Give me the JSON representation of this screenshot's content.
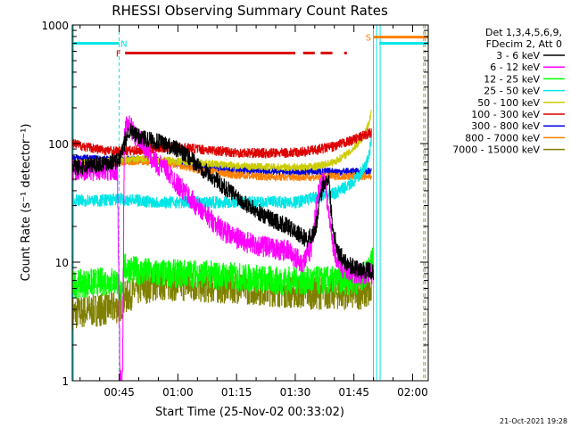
{
  "chart_data": {
    "type": "line",
    "title": "RHESSI Observing Summary Count Rates",
    "xlabel": "Start Time (25-Nov-02 00:33:02)",
    "ylabel": "Count Rate (s⁻¹ detector⁻¹)",
    "yscale": "log",
    "ylim": [
      1,
      1000
    ],
    "xlim_minutes": [
      33.0,
      124.0
    ],
    "x_ticks": [
      {
        "minute": 45,
        "label": "00:45"
      },
      {
        "minute": 60,
        "label": "01:00"
      },
      {
        "minute": 75,
        "label": "01:15"
      },
      {
        "minute": 90,
        "label": "01:30"
      },
      {
        "minute": 105,
        "label": "01:45"
      },
      {
        "minute": 120,
        "label": "02:00"
      }
    ],
    "y_ticks": [
      {
        "value": 1,
        "label": "1"
      },
      {
        "value": 10,
        "label": "10"
      },
      {
        "value": 100,
        "label": "100"
      },
      {
        "value": 1000,
        "label": "1000"
      }
    ],
    "legend_header": [
      "Det 1,3,4,5,6,9,",
      "FDecim 2, Att 0"
    ],
    "legend_position": "right",
    "series": [
      {
        "name": "3 - 6 keV",
        "color": "#000000",
        "noise": 0.07,
        "points": [
          [
            33,
            62
          ],
          [
            45,
            72
          ],
          [
            46.5,
            105
          ],
          [
            47.5,
            130
          ],
          [
            49,
            118
          ],
          [
            51,
            112
          ],
          [
            53,
            108
          ],
          [
            56,
            100
          ],
          [
            59,
            92
          ],
          [
            62,
            80
          ],
          [
            65,
            66
          ],
          [
            68,
            55
          ],
          [
            71,
            45
          ],
          [
            74,
            38
          ],
          [
            77,
            32
          ],
          [
            80,
            27
          ],
          [
            84,
            23
          ],
          [
            88,
            20
          ],
          [
            90,
            18
          ],
          [
            91,
            17
          ],
          [
            93,
            15.5
          ],
          [
            95,
            18
          ],
          [
            97,
            45
          ],
          [
            98.5,
            52
          ],
          [
            99.5,
            20
          ],
          [
            101,
            12
          ],
          [
            103,
            10
          ],
          [
            105,
            9
          ],
          [
            107,
            8.5
          ],
          [
            109,
            8.5
          ],
          [
            110,
            8
          ]
        ],
        "gaps": [
          [
            109.5,
            124
          ]
        ]
      },
      {
        "name": "6 - 12 keV",
        "color": "#ff00ff",
        "noise": 0.09,
        "points": [
          [
            33,
            60
          ],
          [
            44.5,
            60
          ],
          [
            45.2,
            1
          ],
          [
            45.8,
            1
          ],
          [
            46.3,
            135
          ],
          [
            47.5,
            150
          ],
          [
            49,
            115
          ],
          [
            51,
            100
          ],
          [
            54,
            70
          ],
          [
            57,
            60
          ],
          [
            60,
            45
          ],
          [
            63,
            35
          ],
          [
            66,
            27
          ],
          [
            69,
            22
          ],
          [
            72,
            18
          ],
          [
            75,
            16
          ],
          [
            78,
            14.5
          ],
          [
            80,
            14
          ],
          [
            84,
            13
          ],
          [
            88,
            12.5
          ],
          [
            90,
            11
          ],
          [
            92,
            10
          ],
          [
            94,
            13
          ],
          [
            96,
            40
          ],
          [
            97.5,
            55
          ],
          [
            98.5,
            25
          ],
          [
            100,
            12
          ],
          [
            102,
            9
          ],
          [
            105,
            8
          ],
          [
            110,
            8
          ]
        ],
        "gaps": [
          [
            109.5,
            124
          ]
        ]
      },
      {
        "name": "12 - 25 keV",
        "color": "#00ff00",
        "noise": 0.12,
        "points": [
          [
            33,
            6.5
          ],
          [
            44.5,
            7
          ],
          [
            45.2,
            5
          ],
          [
            46.3,
            9
          ],
          [
            49,
            8.5
          ],
          [
            55,
            8
          ],
          [
            65,
            8
          ],
          [
            75,
            7.5
          ],
          [
            85,
            7
          ],
          [
            90,
            7
          ],
          [
            95,
            7
          ],
          [
            100,
            7
          ],
          [
            106,
            7
          ],
          [
            108,
            8
          ],
          [
            109,
            10
          ],
          [
            110,
            10
          ]
        ],
        "gaps": [
          [
            109.5,
            124
          ]
        ]
      },
      {
        "name": "25 - 50 keV",
        "color": "#00e5e5",
        "noise": 0.05,
        "points": [
          [
            33,
            33
          ],
          [
            40,
            33
          ],
          [
            45,
            34
          ],
          [
            50,
            33
          ],
          [
            55,
            32
          ],
          [
            60,
            32
          ],
          [
            65,
            32
          ],
          [
            70,
            32
          ],
          [
            75,
            32
          ],
          [
            80,
            32
          ],
          [
            85,
            32
          ],
          [
            90,
            32
          ],
          [
            95,
            35
          ],
          [
            100,
            38
          ],
          [
            104,
            45
          ],
          [
            106,
            52
          ],
          [
            108,
            65
          ],
          [
            109,
            85
          ],
          [
            109.5,
            110
          ]
        ],
        "gaps": [
          [
            109.8,
            124
          ]
        ]
      },
      {
        "name": "50 - 100 keV",
        "color": "#cccc00",
        "noise": 0.03,
        "points": [
          [
            33,
            68
          ],
          [
            40,
            70
          ],
          [
            45,
            72
          ],
          [
            50,
            74
          ],
          [
            55,
            73
          ],
          [
            60,
            71
          ],
          [
            65,
            69
          ],
          [
            70,
            67
          ],
          [
            75,
            65
          ],
          [
            80,
            64
          ],
          [
            85,
            63
          ],
          [
            90,
            63
          ],
          [
            95,
            64
          ],
          [
            100,
            70
          ],
          [
            104,
            85
          ],
          [
            107,
            110
          ],
          [
            108.5,
            140
          ],
          [
            109.5,
            190
          ]
        ],
        "gaps": [
          [
            109.8,
            124
          ]
        ]
      },
      {
        "name": "100 - 300 keV",
        "color": "#dd0000",
        "noise": 0.04,
        "points": [
          [
            33,
            100
          ],
          [
            37,
            93
          ],
          [
            41,
            88
          ],
          [
            45,
            86
          ],
          [
            50,
            88
          ],
          [
            55,
            92
          ],
          [
            60,
            93
          ],
          [
            65,
            90
          ],
          [
            70,
            87
          ],
          [
            75,
            84
          ],
          [
            80,
            83
          ],
          [
            85,
            83
          ],
          [
            90,
            84
          ],
          [
            95,
            88
          ],
          [
            100,
            95
          ],
          [
            104,
            105
          ],
          [
            107,
            115
          ],
          [
            109.5,
            125
          ]
        ],
        "gaps": [
          [
            109.8,
            124
          ]
        ]
      },
      {
        "name": "300 - 800 keV",
        "color": "#0000dd",
        "noise": 0.03,
        "points": [
          [
            33,
            76
          ],
          [
            40,
            74
          ],
          [
            45,
            72
          ],
          [
            50,
            74
          ],
          [
            55,
            72
          ],
          [
            60,
            68
          ],
          [
            65,
            64
          ],
          [
            70,
            62
          ],
          [
            75,
            60
          ],
          [
            80,
            59
          ],
          [
            85,
            58
          ],
          [
            90,
            58
          ],
          [
            95,
            58
          ],
          [
            100,
            58
          ],
          [
            105,
            58
          ],
          [
            109.5,
            58
          ]
        ],
        "gaps": [
          [
            109.8,
            124
          ]
        ]
      },
      {
        "name": "800 - 7000 keV",
        "color": "#ff8000",
        "noise": 0.03,
        "points": [
          [
            33,
            66
          ],
          [
            40,
            68
          ],
          [
            45,
            70
          ],
          [
            50,
            71
          ],
          [
            55,
            70
          ],
          [
            60,
            66
          ],
          [
            65,
            60
          ],
          [
            70,
            57
          ],
          [
            75,
            54
          ],
          [
            80,
            53
          ],
          [
            85,
            52
          ],
          [
            90,
            52
          ],
          [
            95,
            52
          ],
          [
            100,
            53
          ],
          [
            105,
            53
          ],
          [
            109.5,
            53
          ]
        ],
        "gaps": [
          [
            109.8,
            124
          ]
        ]
      },
      {
        "name": "7000 - 15000 keV",
        "color": "#808000",
        "noise": 0.14,
        "points": [
          [
            33,
            3.7
          ],
          [
            40,
            4
          ],
          [
            45,
            4.2
          ],
          [
            46.5,
            5
          ],
          [
            50,
            6
          ],
          [
            55,
            6.5
          ],
          [
            60,
            6.5
          ],
          [
            65,
            6.3
          ],
          [
            70,
            6.2
          ],
          [
            75,
            6.2
          ],
          [
            80,
            6
          ],
          [
            85,
            5.8
          ],
          [
            90,
            5.6
          ],
          [
            95,
            5.5
          ],
          [
            100,
            5.5
          ],
          [
            106,
            5.5
          ],
          [
            109.5,
            5.5
          ]
        ],
        "gaps": [
          [
            109.8,
            124
          ]
        ]
      }
    ],
    "flags": [
      {
        "label": "N",
        "color": "#00e5e5",
        "y_value": 700,
        "segments": [
          [
            33,
            45
          ]
        ],
        "label_minute": 46.2
      },
      {
        "label": "F",
        "color": "#dd0000",
        "y_value": 580,
        "segments": [
          [
            46.5,
            90
          ],
          [
            92,
            95
          ],
          [
            96.5,
            99.5
          ],
          [
            102.5,
            103.2
          ]
        ],
        "label_minute": 44.8
      },
      {
        "label": "S",
        "color": "#ff8000",
        "y_value": 790,
        "segments": [
          [
            110,
            124
          ]
        ],
        "label_minute": 108.7
      },
      {
        "label": "",
        "color": "#00e5e5",
        "y_value": 700,
        "segments": [
          [
            111.5,
            124
          ]
        ],
        "label_minute": null
      }
    ],
    "vlines": [
      {
        "minute": 45,
        "color": "#00e5e5",
        "style": "dashed"
      },
      {
        "minute": 110,
        "color": "#ff8000",
        "style": "solid"
      },
      {
        "minute": 110.8,
        "color": "#00e5e5",
        "style": "solid"
      },
      {
        "minute": 111.7,
        "color": "#00e5e5",
        "style": "solid"
      },
      {
        "minute": 122.8,
        "color": "#00e5e5",
        "style": "dashed"
      },
      {
        "minute": 123.2,
        "color": "#ff8000",
        "style": "dashed"
      }
    ]
  },
  "footer_timestamp": "21-Oct-2021 19:28"
}
